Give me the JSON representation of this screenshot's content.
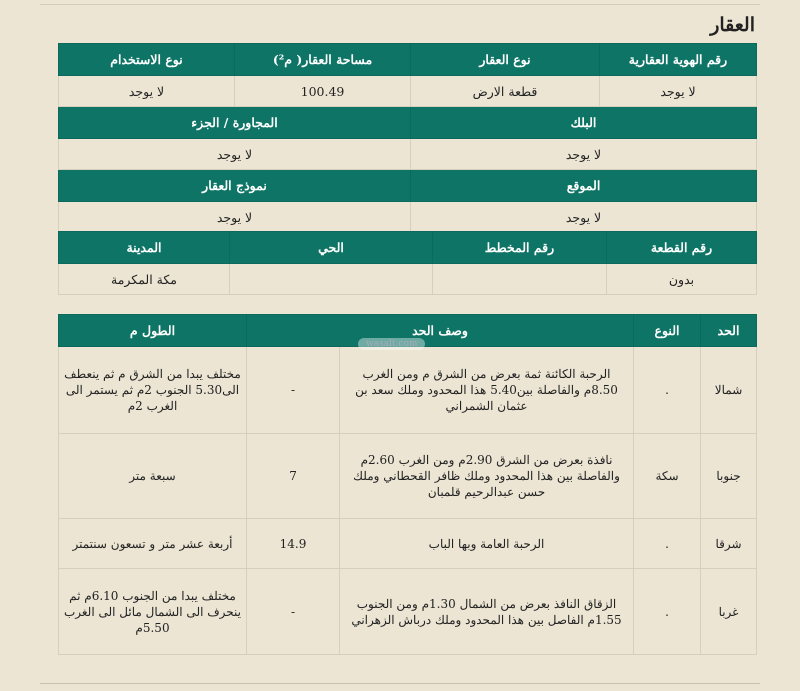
{
  "section_title": "العقار",
  "property": {
    "row1_headers": [
      "رقم الهوية العقارية",
      "نوع العقار",
      "مساحة العقار( م²)",
      "نوع الاستخدام"
    ],
    "row1_values": [
      "لا يوجد",
      "قطعة الارض",
      "100.49",
      "لا يوجد"
    ],
    "row2_headers": [
      "البلك",
      "المجاورة / الجزء"
    ],
    "row2_values": [
      "لا يوجد",
      "لا يوجد"
    ],
    "row3_headers": [
      "الموقع",
      "نموذج العقار"
    ],
    "row3_values": [
      "لا يوجد",
      "لا يوجد"
    ],
    "row4_headers": [
      "رقم القطعة",
      "رقم المخطط",
      "الحي",
      "المدينة"
    ],
    "row4_values": [
      "بدون",
      "",
      "",
      "مكة المكرمة"
    ]
  },
  "boundaries": {
    "headers": [
      "الحد",
      "النوع",
      "وصف الحد",
      "",
      "الطول م"
    ],
    "rows": [
      [
        "شمالا",
        ".",
        "الرحبة الكائنة ثمة  بعرض من الشرق م ومن الغرب 8.50م  والفاصلة بين5.40 هذا المحدود وملك سعد بن عثمان الشمراني",
        "-",
        "مختلف يبدا من الشرق م ثم ينعطف الى5.30 الجنوب 2م ثم يستمر الى الغرب 2م"
      ],
      [
        "جنوبا",
        "سكة",
        "نافذة بعرض من الشرق 2.90م ومن الغرب 2.60م والفاصلة بين هذا المحدود وملك ظافر القحطاني وملك حسن عبدالرحيم قلمبان",
        "7",
        "سبعة متر"
      ],
      [
        "شرقا",
        ".",
        "الرحبة العامة وبها الباب",
        "14.9",
        "أربعة عشر متر و تسعون سنتمتر"
      ],
      [
        "غربا",
        ".",
        "الزقاق النافذ  بعرض من الشمال 1.30م ومن الجنوب 1.55م الفاصل بين هذا المحدود وملك درباش الزهراني",
        "-",
        "مختلف يبدا من الجنوب 6.10م ثم ينحرف الى الشمال مائل الى الغرب 5.50م"
      ]
    ]
  },
  "watermark": "wasalt.com",
  "colors": {
    "header": "#0d7466",
    "background": "#ece5d4"
  }
}
